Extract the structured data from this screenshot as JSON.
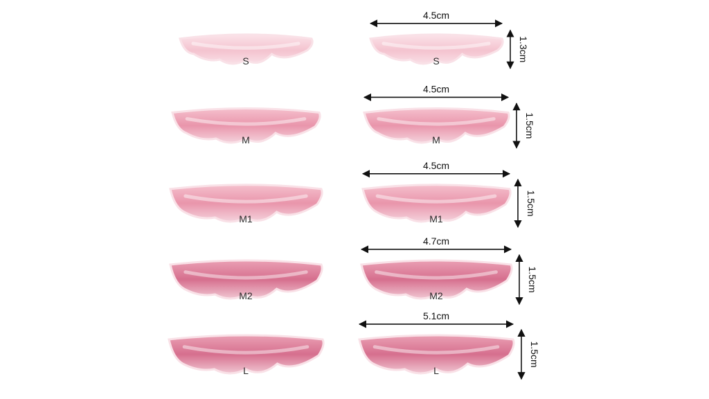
{
  "colors": {
    "background": "#ffffff",
    "pad_light": "#f6cfd8",
    "pad_mid": "#ec9fb3",
    "pad_deep": "#d86e8c",
    "edge": "#f9e1e7",
    "arrow": "#111111"
  },
  "rows": [
    {
      "size": "S",
      "width_label": "4.5cm",
      "height_label": "1.3cm",
      "tone": "pad_light"
    },
    {
      "size": "M",
      "width_label": "4.5cm",
      "height_label": "1.5cm",
      "tone": "pad_mid"
    },
    {
      "size": "M1",
      "width_label": "4.5cm",
      "height_label": "1.5cm",
      "tone": "pad_mid"
    },
    {
      "size": "M2",
      "width_label": "4.7cm",
      "height_label": "1.5cm",
      "tone": "pad_deep"
    },
    {
      "size": "L",
      "width_label": "5.1cm",
      "height_label": "1.5cm",
      "tone": "pad_deep"
    }
  ]
}
